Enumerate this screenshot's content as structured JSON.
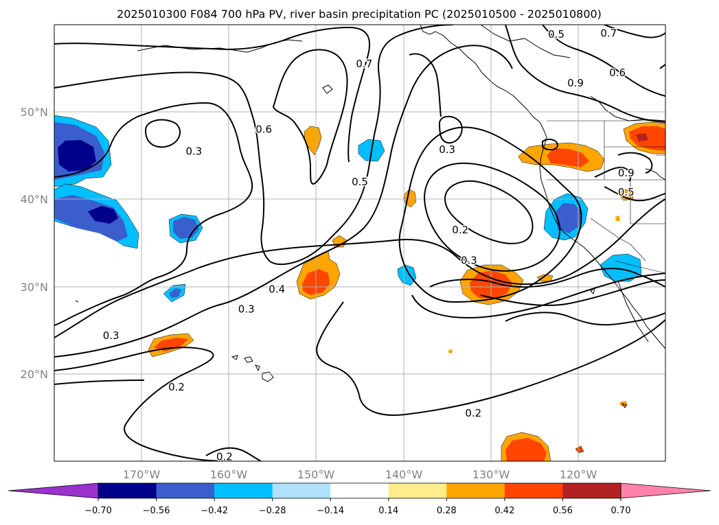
{
  "chart_data": {
    "type": "heatmap",
    "title": "2025010300 F084 700 hPa PV, river basin precipitation PC (2025010500 - 2025010800)",
    "x_ticks": [
      "170°W",
      "160°W",
      "150°W",
      "140°W",
      "130°W",
      "120°W"
    ],
    "x_tick_values": [
      -170,
      -160,
      -150,
      -140,
      -130,
      -120
    ],
    "y_ticks": [
      "50°N",
      "40°N",
      "30°N",
      "20°N"
    ],
    "y_tick_values": [
      50,
      40,
      30,
      20
    ],
    "xlim": [
      -180,
      -110
    ],
    "ylim": [
      10,
      60
    ],
    "grid": true,
    "colorbar": {
      "orientation": "horizontal",
      "extend": "both",
      "tick_labels": [
        "−0.70",
        "−0.56",
        "−0.42",
        "−0.28",
        "−0.14",
        "0.14",
        "0.28",
        "0.42",
        "0.56",
        "0.70"
      ],
      "levels": [
        -0.7,
        -0.56,
        -0.42,
        -0.28,
        -0.14,
        0.14,
        0.28,
        0.42,
        0.56,
        0.7
      ],
      "colors": [
        "#9932cc",
        "#00008b",
        "#3a5fcd",
        "#00bfff",
        "#b0e2ff",
        "#ffffff",
        "#ffec8b",
        "#ffa500",
        "#ff4500",
        "#b22222",
        "#ff82ab"
      ]
    },
    "pv_contour_labels": [
      {
        "lon": -164,
        "lat": 45.5,
        "text": "0.3"
      },
      {
        "lon": -135,
        "lat": 45.7,
        "text": "0.3"
      },
      {
        "lon": -132.5,
        "lat": 33.0,
        "text": "0.3"
      },
      {
        "lon": -173.5,
        "lat": 24.4,
        "text": "0.3"
      },
      {
        "lon": -158,
        "lat": 27.4,
        "text": "0.3"
      },
      {
        "lon": -154.5,
        "lat": 29.7,
        "text": "0.4"
      },
      {
        "lon": -145,
        "lat": 42.0,
        "text": "0.5"
      },
      {
        "lon": -122.5,
        "lat": 58.9,
        "text": "0.5"
      },
      {
        "lon": -114.5,
        "lat": 40.8,
        "text": "0.5"
      },
      {
        "lon": -156,
        "lat": 48.0,
        "text": "0.6"
      },
      {
        "lon": -115.5,
        "lat": 54.5,
        "text": "0.6"
      },
      {
        "lon": -144.5,
        "lat": 55.5,
        "text": "0.7"
      },
      {
        "lon": -116.5,
        "lat": 59.0,
        "text": "0.7"
      },
      {
        "lon": -120.3,
        "lat": 53.3,
        "text": "0.9"
      },
      {
        "lon": -114.5,
        "lat": 43.0,
        "text": "0.9"
      },
      {
        "lon": -133.5,
        "lat": 36.5,
        "text": "0.2"
      },
      {
        "lon": -166,
        "lat": 18.5,
        "text": "0.2"
      },
      {
        "lon": -132,
        "lat": 15.5,
        "text": "0.2"
      },
      {
        "lon": -160.5,
        "lat": 10.5,
        "text": "0.2"
      }
    ]
  }
}
